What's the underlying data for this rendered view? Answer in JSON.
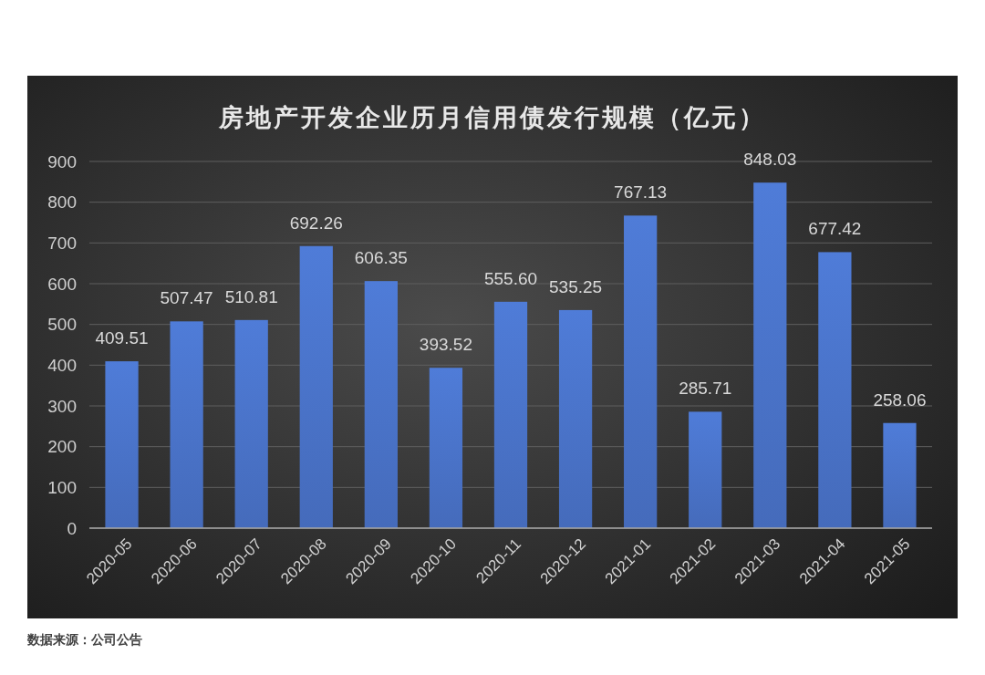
{
  "chart_data": {
    "type": "bar",
    "title": "房地产开发企业历月信用债发行规模（亿元）",
    "categories": [
      "2020-05",
      "2020-06",
      "2020-07",
      "2020-08",
      "2020-09",
      "2020-10",
      "2020-11",
      "2020-12",
      "2021-01",
      "2021-02",
      "2021-03",
      "2021-04",
      "2021-05"
    ],
    "values": [
      409.51,
      507.47,
      510.81,
      692.26,
      606.35,
      393.52,
      555.6,
      535.25,
      767.13,
      285.71,
      848.03,
      677.42,
      258.06
    ],
    "value_labels": [
      "409.51",
      "507.47",
      "510.81",
      "692.26",
      "606.35",
      "393.52",
      "555.60",
      "535.25",
      "767.13",
      "285.71",
      "848.03",
      "677.42",
      "258.06"
    ],
    "color": "#4a73c9",
    "ylim": [
      0,
      900
    ],
    "yticks": [
      0,
      100,
      200,
      300,
      400,
      500,
      600,
      700,
      800,
      900
    ],
    "grid": "y",
    "annotations": [
      "数据来源：公司公告"
    ]
  }
}
